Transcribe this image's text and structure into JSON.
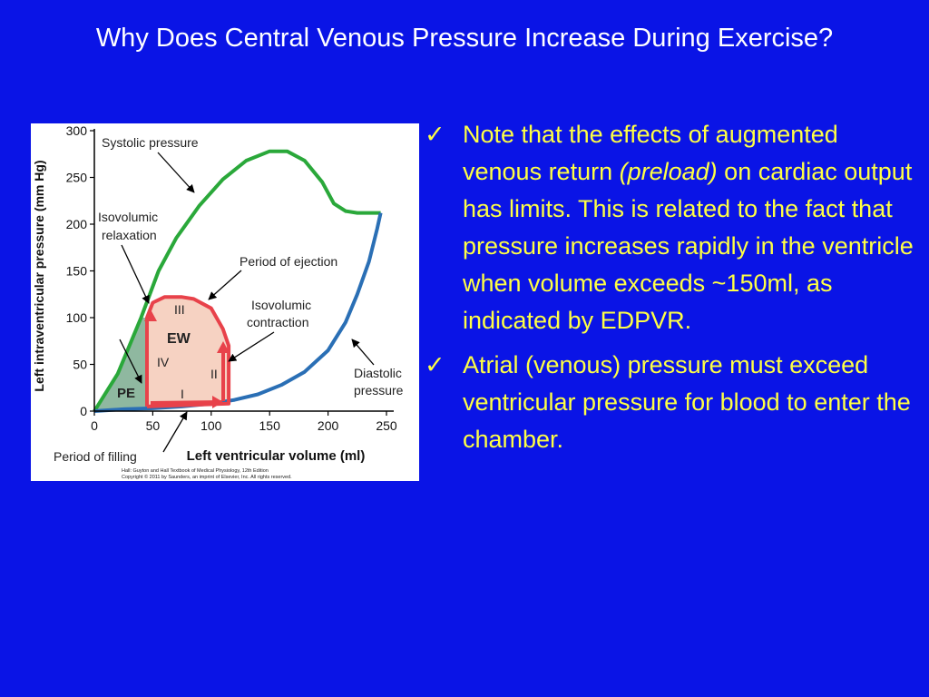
{
  "slide": {
    "title": "Why Does Central Venous Pressure Increase During Exercise?"
  },
  "figure": {
    "labels": {
      "systolic": "Systolic pressure",
      "isovolumic_relaxation_1": "Isovolumic",
      "isovolumic_relaxation_2": "relaxation",
      "period_ejection": "Period of ejection",
      "isovolumic_contraction_1": "Isovolumic",
      "isovolumic_contraction_2": "contraction",
      "diastolic_1": "Diastolic",
      "diastolic_2": "pressure",
      "period_filling": "Period of filling",
      "ew": "EW",
      "pe": "PE",
      "phase_1": "I",
      "phase_2": "II",
      "phase_3": "III",
      "phase_4": "IV"
    },
    "credit_1": "Hall: Guyton and Hall Textbook of Medical Physiology, 12th Edition",
    "credit_2": "Copyright © 2011 by Saunders, an imprint of Elsevier, Inc. All rights reserved."
  },
  "chart_data": {
    "type": "line",
    "xlabel": "Left ventricular volume (ml)",
    "ylabel": "Left intraventricular pressure (mm Hg)",
    "xlim": [
      0,
      250
    ],
    "ylim": [
      0,
      300
    ],
    "x_ticks": [
      "0",
      "50",
      "100",
      "150",
      "200",
      "250"
    ],
    "y_ticks": [
      "0",
      "50",
      "100",
      "150",
      "200",
      "250",
      "300"
    ],
    "colors": {
      "systolic": "#2aa83a",
      "diastolic": "#2a6fb5",
      "loop": "#e8424a",
      "ew_fill": "#f6d2c2",
      "pe_fill": "#8fb8a0"
    },
    "series": [
      {
        "x": [
          0,
          20,
          40,
          55,
          70,
          90,
          110,
          130,
          150,
          165,
          180,
          195,
          205,
          215,
          225,
          235,
          245
        ],
        "y": [
          0,
          40,
          100,
          150,
          185,
          220,
          248,
          268,
          278,
          278,
          268,
          245,
          222,
          214,
          212,
          212,
          212
        ]
      },
      {
        "x": [
          0,
          25,
          50,
          75,
          100,
          120,
          140,
          160,
          180,
          200,
          215,
          225,
          235,
          242,
          245
        ],
        "y": [
          0,
          2,
          3,
          5,
          8,
          12,
          18,
          28,
          42,
          65,
          95,
          125,
          160,
          195,
          212
        ]
      },
      {
        "x": [
          45,
          115,
          115,
          110,
          100,
          85,
          75,
          60,
          50,
          45,
          45
        ],
        "y": [
          5,
          8,
          70,
          88,
          110,
          120,
          122,
          122,
          116,
          100,
          5
        ]
      }
    ]
  },
  "bullets": [
    {
      "check": "✓",
      "p1": "Note that the effects of augmented venous return ",
      "p2": "(preload)",
      "p3": " on cardiac output has limits.  This is related to the fact that pressure increases rapidly in the ventricle when volume exceeds ~150ml, as indicated by EDPVR."
    },
    {
      "check": "✓",
      "p1": "Atrial (venous) pressure must exceed ventricular pressure for blood to enter the chamber."
    }
  ]
}
